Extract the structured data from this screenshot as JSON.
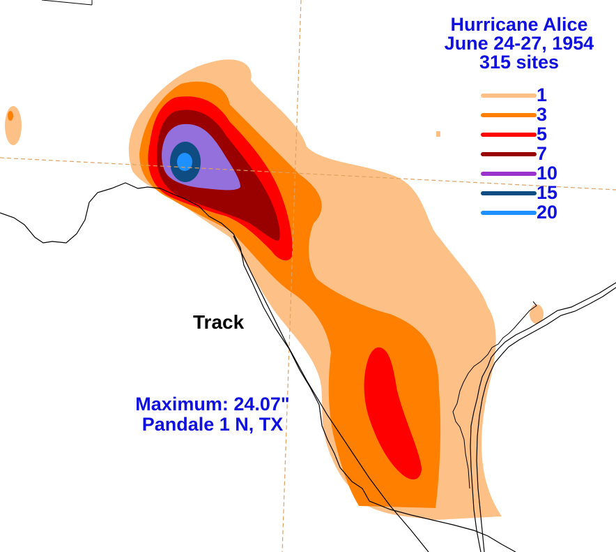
{
  "title": {
    "line1": "Hurricane Alice",
    "line2": "June 24-27, 1954",
    "line3": "315 sites"
  },
  "legend": [
    {
      "label": "1",
      "color": "#fdc086"
    },
    {
      "label": "3",
      "color": "#ff8000"
    },
    {
      "label": "5",
      "color": "#ff0000"
    },
    {
      "label": "7",
      "color": "#990000"
    },
    {
      "label": "10",
      "color": "#9933cc"
    },
    {
      "label": "15",
      "color": "#0f4c81"
    },
    {
      "label": "20",
      "color": "#1e90ff"
    }
  ],
  "track_label": "Track",
  "maximum": {
    "line1": "Maximum: 24.07\"",
    "line2": "Pandale 1 N, TX"
  },
  "colors": {
    "text_blue": "#1010e0",
    "contour_1": "#fdc086",
    "contour_3": "#ff8000",
    "contour_5": "#ff0000",
    "contour_7": "#990000",
    "contour_10": "#9370db",
    "contour_15": "#0f4c81",
    "contour_20": "#1e90ff",
    "county_lines": "#e0a060"
  }
}
